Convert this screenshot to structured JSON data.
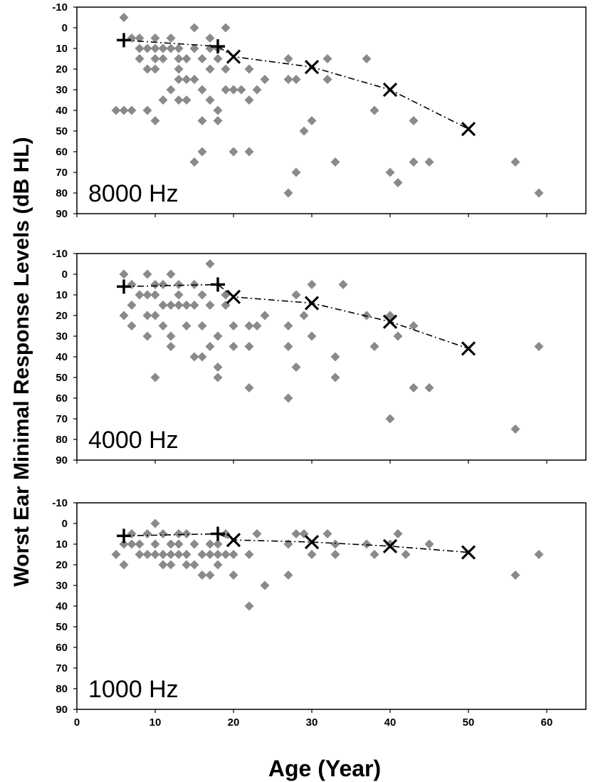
{
  "chart_data": {
    "type": "scatter",
    "ylabel": "Worst Ear Minimal Response Levels (dB HL)",
    "xlabel": "Age (Year)",
    "xlim": [
      0,
      65
    ],
    "ylim": [
      -10,
      90
    ],
    "y_inverted": true,
    "x_ticks": [
      "0",
      "10",
      "20",
      "30",
      "40",
      "50",
      "60"
    ],
    "y_ticks": [
      "-10",
      "0",
      "10",
      "20",
      "30",
      "40",
      "50",
      "60",
      "70",
      "80",
      "90"
    ],
    "grid": false,
    "colors": {
      "points": "#8a8a8a",
      "markers": "#000000",
      "frame": "#000000"
    },
    "panels": [
      {
        "label": "8000 Hz",
        "individual_points": [
          [
            6,
            -5
          ],
          [
            5,
            40
          ],
          [
            6,
            40
          ],
          [
            7,
            40
          ],
          [
            7,
            5
          ],
          [
            8,
            10
          ],
          [
            8,
            15
          ],
          [
            9,
            10
          ],
          [
            9,
            20
          ],
          [
            9,
            40
          ],
          [
            8,
            5
          ],
          [
            10,
            5
          ],
          [
            10,
            10
          ],
          [
            10,
            15
          ],
          [
            10,
            20
          ],
          [
            10,
            45
          ],
          [
            11,
            15
          ],
          [
            11,
            10
          ],
          [
            11,
            35
          ],
          [
            12,
            5
          ],
          [
            12,
            10
          ],
          [
            12,
            30
          ],
          [
            13,
            10
          ],
          [
            13,
            15
          ],
          [
            13,
            20
          ],
          [
            13,
            25
          ],
          [
            13,
            35
          ],
          [
            14,
            35
          ],
          [
            14,
            25
          ],
          [
            14,
            15
          ],
          [
            15,
            0
          ],
          [
            15,
            10
          ],
          [
            15,
            25
          ],
          [
            15,
            65
          ],
          [
            16,
            15
          ],
          [
            16,
            45
          ],
          [
            16,
            60
          ],
          [
            16,
            30
          ],
          [
            17,
            5
          ],
          [
            17,
            20
          ],
          [
            17,
            35
          ],
          [
            17,
            10
          ],
          [
            18,
            10
          ],
          [
            18,
            15
          ],
          [
            18,
            40
          ],
          [
            18,
            45
          ],
          [
            19,
            0
          ],
          [
            19,
            30
          ],
          [
            19,
            20
          ],
          [
            20,
            30
          ],
          [
            20,
            60
          ],
          [
            21,
            30
          ],
          [
            22,
            20
          ],
          [
            22,
            35
          ],
          [
            22,
            60
          ],
          [
            23,
            30
          ],
          [
            24,
            25
          ],
          [
            27,
            15
          ],
          [
            27,
            25
          ],
          [
            27,
            80
          ],
          [
            28,
            25
          ],
          [
            28,
            70
          ],
          [
            29,
            50
          ],
          [
            30,
            45
          ],
          [
            32,
            15
          ],
          [
            32,
            25
          ],
          [
            33,
            65
          ],
          [
            37,
            15
          ],
          [
            38,
            40
          ],
          [
            40,
            70
          ],
          [
            41,
            75
          ],
          [
            43,
            45
          ],
          [
            43,
            65
          ],
          [
            45,
            65
          ],
          [
            56,
            65
          ],
          [
            59,
            80
          ]
        ],
        "plus_markers": [
          [
            6,
            6
          ],
          [
            18,
            9
          ]
        ],
        "x_markers": [
          [
            20,
            14
          ],
          [
            30,
            19
          ],
          [
            40,
            30
          ],
          [
            50,
            49
          ]
        ]
      },
      {
        "label": "4000 Hz",
        "individual_points": [
          [
            6,
            0
          ],
          [
            6,
            20
          ],
          [
            7,
            15
          ],
          [
            7,
            25
          ],
          [
            7,
            5
          ],
          [
            8,
            10
          ],
          [
            9,
            0
          ],
          [
            9,
            20
          ],
          [
            9,
            30
          ],
          [
            9,
            10
          ],
          [
            10,
            5
          ],
          [
            10,
            10
          ],
          [
            10,
            20
          ],
          [
            10,
            50
          ],
          [
            11,
            15
          ],
          [
            11,
            25
          ],
          [
            11,
            5
          ],
          [
            12,
            0
          ],
          [
            12,
            15
          ],
          [
            12,
            30
          ],
          [
            12,
            35
          ],
          [
            13,
            15
          ],
          [
            13,
            10
          ],
          [
            13,
            5
          ],
          [
            14,
            15
          ],
          [
            14,
            25
          ],
          [
            15,
            5
          ],
          [
            15,
            15
          ],
          [
            15,
            40
          ],
          [
            16,
            10
          ],
          [
            16,
            40
          ],
          [
            16,
            25
          ],
          [
            17,
            -5
          ],
          [
            17,
            15
          ],
          [
            17,
            35
          ],
          [
            18,
            30
          ],
          [
            18,
            45
          ],
          [
            18,
            50
          ],
          [
            19,
            15
          ],
          [
            19,
            10
          ],
          [
            20,
            25
          ],
          [
            20,
            35
          ],
          [
            22,
            25
          ],
          [
            22,
            35
          ],
          [
            22,
            55
          ],
          [
            23,
            25
          ],
          [
            24,
            20
          ],
          [
            27,
            25
          ],
          [
            27,
            35
          ],
          [
            27,
            60
          ],
          [
            28,
            10
          ],
          [
            28,
            45
          ],
          [
            29,
            20
          ],
          [
            30,
            5
          ],
          [
            30,
            30
          ],
          [
            33,
            40
          ],
          [
            33,
            50
          ],
          [
            34,
            5
          ],
          [
            37,
            20
          ],
          [
            38,
            35
          ],
          [
            40,
            20
          ],
          [
            40,
            70
          ],
          [
            41,
            30
          ],
          [
            43,
            25
          ],
          [
            43,
            55
          ],
          [
            45,
            55
          ],
          [
            56,
            75
          ],
          [
            59,
            35
          ]
        ],
        "plus_markers": [
          [
            6,
            6
          ],
          [
            18,
            5
          ]
        ],
        "x_markers": [
          [
            20,
            11
          ],
          [
            30,
            14
          ],
          [
            40,
            23
          ],
          [
            50,
            36
          ]
        ]
      },
      {
        "label": "1000 Hz",
        "individual_points": [
          [
            5,
            15
          ],
          [
            6,
            20
          ],
          [
            6,
            10
          ],
          [
            7,
            10
          ],
          [
            7,
            5
          ],
          [
            8,
            15
          ],
          [
            8,
            10
          ],
          [
            9,
            15
          ],
          [
            9,
            5
          ],
          [
            10,
            0
          ],
          [
            10,
            15
          ],
          [
            10,
            10
          ],
          [
            11,
            15
          ],
          [
            11,
            20
          ],
          [
            11,
            5
          ],
          [
            12,
            15
          ],
          [
            12,
            20
          ],
          [
            12,
            10
          ],
          [
            13,
            5
          ],
          [
            13,
            15
          ],
          [
            13,
            10
          ],
          [
            14,
            15
          ],
          [
            14,
            20
          ],
          [
            14,
            5
          ],
          [
            15,
            10
          ],
          [
            15,
            20
          ],
          [
            16,
            25
          ],
          [
            16,
            15
          ],
          [
            17,
            25
          ],
          [
            17,
            15
          ],
          [
            17,
            10
          ],
          [
            18,
            10
          ],
          [
            18,
            15
          ],
          [
            18,
            20
          ],
          [
            19,
            5
          ],
          [
            19,
            15
          ],
          [
            20,
            25
          ],
          [
            20,
            15
          ],
          [
            22,
            15
          ],
          [
            22,
            40
          ],
          [
            23,
            5
          ],
          [
            24,
            30
          ],
          [
            27,
            10
          ],
          [
            27,
            25
          ],
          [
            28,
            5
          ],
          [
            29,
            5
          ],
          [
            30,
            15
          ],
          [
            32,
            5
          ],
          [
            33,
            10
          ],
          [
            33,
            15
          ],
          [
            37,
            10
          ],
          [
            38,
            15
          ],
          [
            40,
            10
          ],
          [
            41,
            5
          ],
          [
            42,
            15
          ],
          [
            45,
            10
          ],
          [
            56,
            25
          ],
          [
            59,
            15
          ]
        ],
        "plus_markers": [
          [
            6,
            6
          ],
          [
            18,
            5
          ]
        ],
        "x_markers": [
          [
            20,
            8
          ],
          [
            30,
            9
          ],
          [
            40,
            11
          ],
          [
            50,
            14
          ]
        ]
      }
    ]
  }
}
